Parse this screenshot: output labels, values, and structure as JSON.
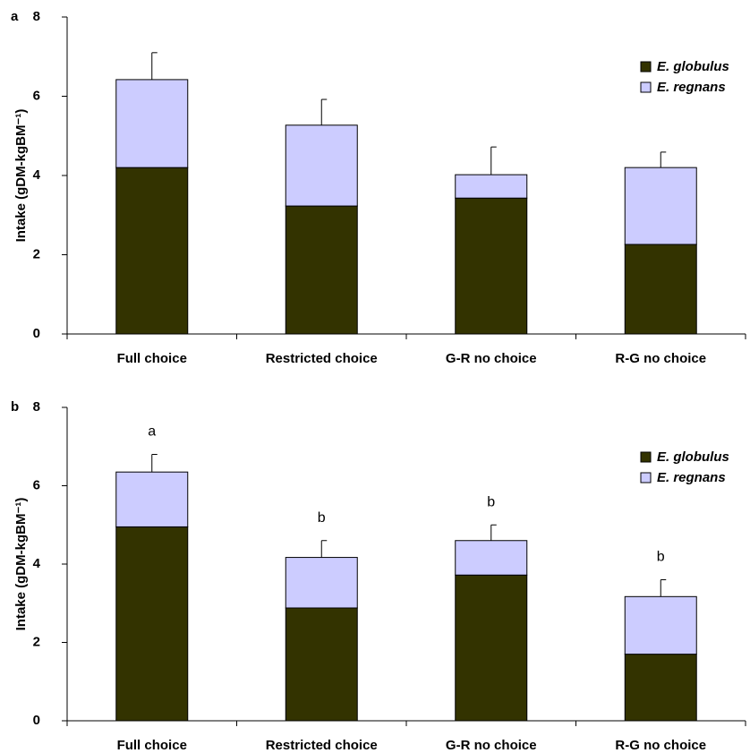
{
  "chart_data": [
    {
      "type": "stacked_bar",
      "panel": "a",
      "y_label": "Intake (gDM-kgBM⁻¹)",
      "categories": [
        "Full choice",
        "Restricted choice",
        "G-R no choice",
        "R-G no choice"
      ],
      "series": [
        {
          "name": "E. globulus",
          "color": "#333300",
          "values": [
            4.2,
            3.23,
            3.43,
            2.26
          ]
        },
        {
          "name": "E. regnans",
          "color": "#ccccff",
          "values": [
            2.22,
            2.04,
            0.59,
            1.94
          ]
        }
      ],
      "errors": [
        0.68,
        0.65,
        0.7,
        0.39
      ],
      "ylim": [
        0,
        8
      ],
      "yticks": [
        0,
        2,
        4,
        6,
        8
      ],
      "legend": "upper right"
    },
    {
      "type": "stacked_bar",
      "panel": "b",
      "y_label": "Intake (gDM-kgBM⁻¹)",
      "categories": [
        "Full choice",
        "Restricted choice",
        "G-R no choice",
        "R-G no choice"
      ],
      "series": [
        {
          "name": "E. globulus",
          "color": "#333300",
          "values": [
            4.95,
            2.88,
            3.72,
            1.7
          ]
        },
        {
          "name": "E. regnans",
          "color": "#ccccff",
          "values": [
            1.4,
            1.29,
            0.88,
            1.47
          ]
        }
      ],
      "errors": [
        0.45,
        0.43,
        0.4,
        0.43
      ],
      "annotations": [
        "a",
        "b",
        "b",
        "b"
      ],
      "ylim": [
        0,
        8
      ],
      "yticks": [
        0,
        2,
        4,
        6,
        8
      ],
      "legend": "upper right"
    }
  ]
}
